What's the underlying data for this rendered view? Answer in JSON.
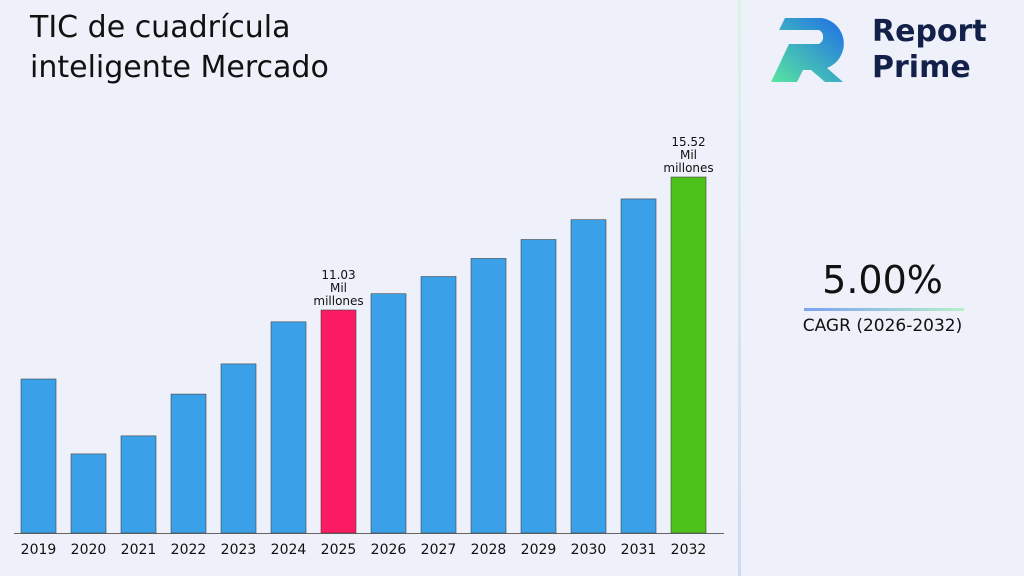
{
  "chart_data": {
    "type": "bar",
    "title": "TIC de cuadrícula inteligente Mercado",
    "categories": [
      "2019",
      "2020",
      "2021",
      "2022",
      "2023",
      "2024",
      "2025",
      "2026",
      "2027",
      "2028",
      "2029",
      "2030",
      "2031",
      "2032"
    ],
    "values": [
      8.7,
      6.17,
      6.78,
      8.19,
      9.21,
      10.63,
      11.03,
      11.58,
      12.16,
      12.77,
      13.41,
      14.08,
      14.78,
      15.52
    ],
    "value_labels": [
      null,
      null,
      null,
      null,
      null,
      null,
      "11.03 Mil millones",
      null,
      null,
      null,
      null,
      null,
      null,
      "15.52 Mil millones"
    ],
    "colors": [
      "#3aa0e8",
      "#3aa0e8",
      "#3aa0e8",
      "#3aa0e8",
      "#3aa0e8",
      "#3aa0e8",
      "#fb1b63",
      "#3aa0e8",
      "#3aa0e8",
      "#3aa0e8",
      "#3aa0e8",
      "#3aa0e8",
      "#3aa0e8",
      "#4cc21b"
    ],
    "ylim": [
      3.5,
      16.5
    ]
  },
  "sidebar": {
    "brand": "Report Prime",
    "cagr_value": "5.00%",
    "cagr_label": "CAGR (2026-2032)"
  }
}
